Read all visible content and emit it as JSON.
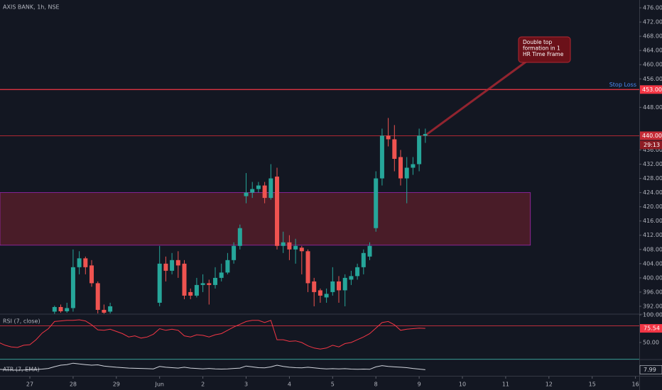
{
  "chart_data": {
    "type": "candlestick",
    "title": "AXIS BANK, 1h, NSE",
    "ylim": [
      389.8,
      478.2
    ],
    "yticks": [
      {
        "value": 392,
        "label": "392.00"
      },
      {
        "value": 396,
        "label": "396.00"
      },
      {
        "value": 400,
        "label": "400.00"
      },
      {
        "value": 404,
        "label": "404.00"
      },
      {
        "value": 408,
        "label": "408.00"
      },
      {
        "value": 412,
        "label": "412.00"
      },
      {
        "value": 416,
        "label": "416.00"
      },
      {
        "value": 420,
        "label": "420.00"
      },
      {
        "value": 424,
        "label": "424.00"
      },
      {
        "value": 428,
        "label": "428.00"
      },
      {
        "value": 432,
        "label": "432.00"
      },
      {
        "value": 436,
        "label": "436.00"
      },
      {
        "value": 448,
        "label": "448.00"
      },
      {
        "value": 456,
        "label": "456.00"
      },
      {
        "value": 460,
        "label": "460.00"
      },
      {
        "value": 464,
        "label": "464.00"
      },
      {
        "value": 468,
        "label": "468.00"
      },
      {
        "value": 472,
        "label": "472.00"
      },
      {
        "value": 476,
        "label": "476.00"
      }
    ],
    "xlim": [
      0.17,
      103.62
    ],
    "xticks": [
      {
        "value": 5,
        "label": "27"
      },
      {
        "value": 12,
        "label": "28"
      },
      {
        "value": 19,
        "label": "29"
      },
      {
        "value": 26,
        "label": "Jun"
      },
      {
        "value": 33,
        "label": "2"
      },
      {
        "value": 40,
        "label": "3"
      },
      {
        "value": 47,
        "label": "4"
      },
      {
        "value": 54,
        "label": "5"
      },
      {
        "value": 61,
        "label": "8"
      },
      {
        "value": 68,
        "label": "9"
      },
      {
        "value": 75,
        "label": "10"
      },
      {
        "value": 82,
        "label": "11"
      },
      {
        "value": 89,
        "label": "12"
      },
      {
        "value": 96,
        "label": "15"
      },
      {
        "value": 103,
        "label": "16"
      }
    ],
    "up_color": "#26a69a",
    "down_color": "#ef5350",
    "candles": {
      "x": [
        9,
        10,
        11,
        12,
        13,
        14,
        15,
        16,
        17,
        18,
        26,
        27,
        28,
        29,
        30,
        31,
        32,
        33,
        34,
        35,
        36,
        37,
        38,
        39,
        40,
        41,
        42,
        43,
        44,
        45,
        46,
        47,
        48,
        49,
        50,
        51,
        52,
        53,
        54,
        55,
        56,
        57,
        58,
        59,
        60,
        61,
        62,
        63,
        64,
        65,
        66,
        67,
        68,
        69
      ],
      "open": [
        390.5,
        391.8,
        390.6,
        391.5,
        403,
        405.5,
        403.5,
        398.5,
        391,
        390.5,
        393,
        404,
        402,
        405,
        404,
        396,
        395,
        398,
        398.5,
        398,
        400,
        401.5,
        405,
        409,
        423,
        424,
        425,
        426,
        422.5,
        428.5,
        409,
        410,
        408,
        408.5,
        407.5,
        399,
        396.5,
        394.5,
        396,
        399,
        396.5,
        399.5,
        400.5,
        403,
        406,
        414,
        428,
        440,
        439,
        434,
        428,
        431,
        432,
        440
      ],
      "high": [
        392.2,
        392.5,
        393,
        408,
        407.5,
        406,
        405,
        399,
        392.5,
        393,
        409,
        406,
        407,
        407.5,
        405,
        397,
        400,
        401,
        399.5,
        403,
        404,
        407,
        410,
        415,
        429.5,
        427,
        427,
        427,
        432,
        431,
        413,
        412,
        411,
        409,
        408,
        400,
        397,
        397,
        403,
        400.5,
        401,
        402,
        404,
        408,
        410,
        430,
        442,
        445,
        443,
        436,
        434,
        434,
        442,
        442
      ],
      "low": [
        389.9,
        390.2,
        390.2,
        390.5,
        401,
        401,
        397.5,
        390,
        389.9,
        390,
        392,
        399,
        401,
        400,
        394,
        394,
        394.5,
        396,
        392.5,
        397,
        399,
        401,
        404,
        408,
        421,
        422.5,
        424,
        421,
        422,
        408,
        407,
        405,
        404,
        401,
        396,
        392,
        393,
        393,
        395,
        393,
        392,
        398,
        399.5,
        401,
        405,
        413,
        426,
        437,
        430,
        426,
        421,
        429,
        430,
        438
      ],
      "close": [
        391.8,
        390.6,
        391.5,
        403,
        405.5,
        403,
        398.5,
        391,
        390.2,
        392,
        404,
        402,
        405,
        403.5,
        395,
        395,
        398,
        398.5,
        398,
        400,
        401.5,
        405,
        409,
        414,
        424,
        425,
        426,
        422.5,
        428,
        409,
        410,
        408,
        409,
        407.5,
        398.5,
        396,
        395,
        395.5,
        399,
        396.5,
        400,
        400.5,
        403,
        407,
        409,
        428,
        440,
        439,
        433.5,
        428,
        431,
        432,
        440,
        440.5
      ]
    },
    "levels": [
      {
        "value": 453,
        "label": "453.00",
        "text": "Stop Loss",
        "color": "#f23645"
      },
      {
        "value": 440,
        "label": "440.00",
        "color": "#c62b36"
      }
    ],
    "countdown": "29:13",
    "zone": {
      "from": 409.2,
      "to": 424,
      "x_end": 86,
      "color": "#5c1f2b"
    },
    "annotation": [
      "Double top",
      "formation in 1",
      "HR Time Frame"
    ],
    "indicators": [
      {
        "name": "RSI (7, close)",
        "type": "line",
        "color": "#f23645",
        "ylim": [
          19.2,
          101.3
        ],
        "yticks": [
          {
            "value": 50,
            "label": "50.00"
          },
          {
            "value": 100,
            "label": "100.00"
          }
        ],
        "bands": [
          80,
          20
        ],
        "band_colors": [
          "#f23645",
          "#26a69a"
        ],
        "x": [
          0,
          1,
          2,
          3,
          4,
          5,
          6,
          7,
          8,
          9,
          10,
          11,
          12,
          13,
          14,
          15,
          16,
          17,
          18,
          19,
          20,
          21,
          22,
          23,
          24,
          25,
          26,
          27,
          28,
          29,
          30,
          31,
          32,
          33,
          34,
          35,
          36,
          37,
          38,
          39,
          40,
          41,
          42,
          43,
          44,
          45,
          46,
          47,
          48,
          49,
          50,
          51,
          52,
          53,
          54,
          55,
          56,
          57,
          58,
          59,
          60,
          61,
          62,
          63,
          64,
          65,
          66,
          67,
          68,
          69
        ],
        "values": [
          50,
          45,
          42,
          41,
          45,
          46,
          55,
          67,
          75,
          88,
          89,
          90,
          90,
          91,
          89,
          82,
          73,
          72,
          74,
          70,
          66,
          60,
          62,
          58,
          60,
          65,
          75,
          72,
          74,
          72,
          62,
          60,
          64,
          63,
          60,
          64,
          66,
          72,
          78,
          83,
          88,
          90,
          90,
          86,
          90,
          55,
          55,
          52,
          53,
          50,
          44,
          40,
          38,
          40,
          45,
          42,
          48,
          50,
          55,
          60,
          66,
          76,
          86,
          88,
          82,
          72,
          74,
          75,
          76,
          75.54
        ]
      },
      {
        "name": "ATR (7, EMA)",
        "type": "line",
        "color": "#d1d4dc",
        "ylim": [
          5,
          13
        ],
        "x": [
          0,
          1,
          2,
          3,
          4,
          5,
          6,
          7,
          8,
          9,
          10,
          11,
          12,
          13,
          14,
          15,
          16,
          17,
          18,
          19,
          20,
          21,
          22,
          23,
          24,
          25,
          26,
          27,
          28,
          29,
          30,
          31,
          32,
          33,
          34,
          35,
          36,
          37,
          38,
          39,
          40,
          41,
          42,
          43,
          44,
          45,
          46,
          47,
          48,
          49,
          50,
          51,
          52,
          53,
          54,
          55,
          56,
          57,
          58,
          59,
          60,
          61,
          62,
          63,
          64,
          65,
          66,
          67,
          68,
          69
        ],
        "values": [
          8.2,
          8.0,
          7.9,
          7.8,
          7.9,
          8.0,
          8.1,
          8.3,
          8.6,
          9.5,
          10.2,
          10.5,
          11.2,
          10.8,
          10.5,
          10.2,
          10.4,
          9.8,
          9.5,
          9.2,
          9.0,
          8.8,
          8.7,
          8.6,
          8.5,
          8.4,
          9.6,
          9.2,
          9.0,
          8.8,
          9.2,
          8.8,
          8.6,
          8.4,
          8.6,
          8.4,
          8.3,
          8.4,
          8.6,
          8.8,
          9.8,
          9.4,
          9.0,
          8.9,
          9.4,
          10.2,
          9.6,
          9.2,
          9.0,
          8.9,
          9.2,
          8.9,
          8.6,
          8.4,
          8.5,
          8.4,
          8.5,
          8.3,
          8.2,
          8.3,
          8.2,
          9.4,
          10.0,
          9.6,
          9.4,
          9.2,
          9.0,
          8.6,
          8.3,
          7.99
        ]
      }
    ]
  }
}
